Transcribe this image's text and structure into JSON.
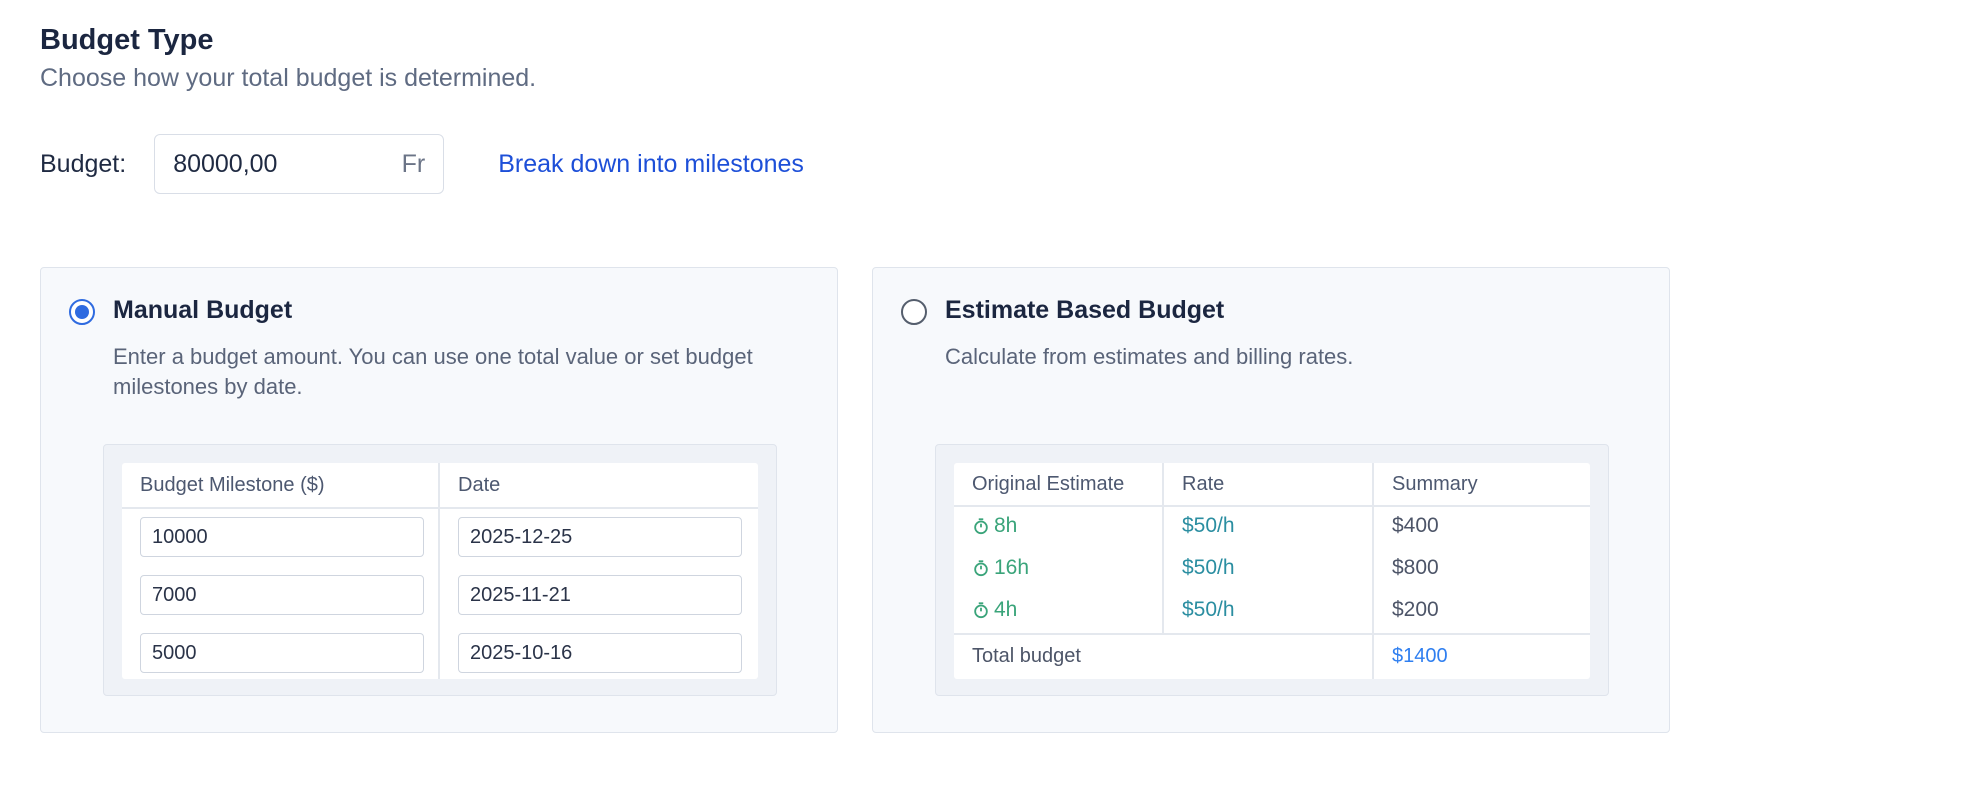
{
  "header": {
    "title": "Budget Type",
    "subtitle": "Choose how your total budget is determined."
  },
  "budget": {
    "label": "Budget:",
    "value": "80000,00",
    "unit": "Fr",
    "milestone_link": "Break down into milestones"
  },
  "manual": {
    "selected": true,
    "title": "Manual Budget",
    "description": "Enter a budget amount. You can use one total value or set budget milestones by date.",
    "headers": [
      "Budget Milestone ($)",
      "Date"
    ],
    "rows": [
      {
        "amount": "10000",
        "date": "2025-12-25"
      },
      {
        "amount": "7000",
        "date": "2025-11-21"
      },
      {
        "amount": "5000",
        "date": "2025-10-16"
      }
    ]
  },
  "estimate": {
    "selected": false,
    "title": "Estimate Based Budget",
    "description": "Calculate from estimates and billing rates.",
    "headers": [
      "Original Estimate",
      "Rate",
      "Summary"
    ],
    "rows": [
      {
        "estimate": "8h",
        "rate": "$50/h",
        "summary": "$400"
      },
      {
        "estimate": "16h",
        "rate": "$50/h",
        "summary": "$800"
      },
      {
        "estimate": "4h",
        "rate": "$50/h",
        "summary": "$200"
      }
    ],
    "total_label": "Total budget",
    "total_value": "$1400"
  },
  "colors": {
    "accent": "#2f6be0",
    "link": "#1d4fd8",
    "estimate_green": "#3aa47a",
    "rate_teal": "#2b8ea1",
    "total_blue": "#2f7ff0"
  },
  "icons": {
    "estimate_icon": "stopwatch-icon",
    "radio_selected": "radio-checked-icon",
    "radio_unselected": "radio-unchecked-icon"
  }
}
